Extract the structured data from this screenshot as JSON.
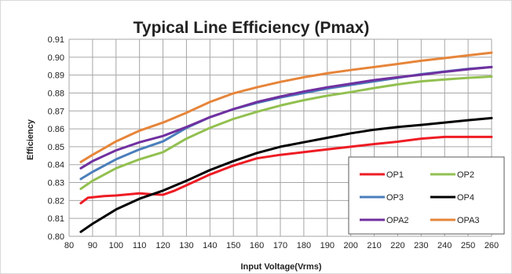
{
  "chart_data": {
    "type": "line",
    "title": "Typical Line Efficiency (Pmax)",
    "xlabel": "Input Voltage(Vrms)",
    "ylabel": "Efficiency",
    "xlim": [
      80,
      260
    ],
    "ylim": [
      0.8,
      0.91
    ],
    "x_ticks": [
      "80",
      "90",
      "100",
      "110",
      "120",
      "130",
      "140",
      "150",
      "160",
      "170",
      "180",
      "190",
      "200",
      "210",
      "220",
      "230",
      "240",
      "250",
      "260"
    ],
    "y_ticks": [
      "0.80",
      "0.81",
      "0.82",
      "0.83",
      "0.84",
      "0.85",
      "0.86",
      "0.87",
      "0.88",
      "0.89",
      "0.90",
      "0.91"
    ],
    "grid": true,
    "legend_position": "bottom-right",
    "series": [
      {
        "name": "OP1",
        "color": "#ee1c24",
        "x": [
          85,
          88,
          95,
          100,
          110,
          115,
          120,
          125,
          130,
          140,
          150,
          160,
          170,
          180,
          190,
          200,
          210,
          220,
          230,
          240,
          250,
          260
        ],
        "y": [
          0.8185,
          0.8215,
          0.8225,
          0.8228,
          0.824,
          0.8235,
          0.8232,
          0.8255,
          0.8285,
          0.8345,
          0.8395,
          0.8435,
          0.8455,
          0.847,
          0.8485,
          0.85,
          0.8515,
          0.8528,
          0.8545,
          0.8555,
          0.8555,
          0.8555
        ]
      },
      {
        "name": "OP2",
        "color": "#92c050",
        "x": [
          85,
          90,
          100,
          110,
          120,
          130,
          140,
          150,
          160,
          170,
          180,
          190,
          200,
          210,
          220,
          230,
          240,
          250,
          260
        ],
        "y": [
          0.8265,
          0.831,
          0.838,
          0.843,
          0.847,
          0.8545,
          0.8605,
          0.8655,
          0.8695,
          0.873,
          0.876,
          0.8785,
          0.8805,
          0.8828,
          0.8848,
          0.8865,
          0.8875,
          0.8885,
          0.8892
        ]
      },
      {
        "name": "OP3",
        "color": "#4a7ebb",
        "x": [
          85,
          90,
          100,
          110,
          120,
          130,
          140,
          150,
          160,
          170,
          180,
          190,
          200,
          210,
          220,
          230,
          240,
          250,
          260
        ],
        "y": [
          0.832,
          0.836,
          0.843,
          0.8485,
          0.853,
          0.8605,
          0.8665,
          0.871,
          0.8745,
          0.8775,
          0.88,
          0.8825,
          0.8845,
          0.8865,
          0.8885,
          0.8905,
          0.892,
          0.8935,
          0.8945
        ]
      },
      {
        "name": "OP4",
        "color": "#000000",
        "x": [
          85,
          90,
          100,
          110,
          120,
          130,
          140,
          150,
          160,
          170,
          180,
          190,
          200,
          210,
          220,
          230,
          240,
          250,
          260
        ],
        "y": [
          0.8025,
          0.807,
          0.815,
          0.821,
          0.8255,
          0.831,
          0.837,
          0.842,
          0.8465,
          0.85,
          0.8525,
          0.855,
          0.8575,
          0.8595,
          0.861,
          0.8622,
          0.8635,
          0.8648,
          0.866
        ]
      },
      {
        "name": "OPA2",
        "color": "#7030a0",
        "x": [
          85,
          90,
          100,
          110,
          120,
          130,
          140,
          150,
          160,
          170,
          180,
          190,
          200,
          210,
          220,
          230,
          240,
          250,
          260
        ],
        "y": [
          0.838,
          0.842,
          0.848,
          0.8525,
          0.856,
          0.861,
          0.8665,
          0.871,
          0.875,
          0.878,
          0.8808,
          0.8832,
          0.8852,
          0.8872,
          0.8888,
          0.8902,
          0.8918,
          0.8932,
          0.8945
        ]
      },
      {
        "name": "OPA3",
        "color": "#e6853a",
        "x": [
          85,
          90,
          100,
          110,
          120,
          130,
          140,
          150,
          160,
          170,
          180,
          190,
          200,
          210,
          220,
          230,
          240,
          250,
          260
        ],
        "y": [
          0.8415,
          0.8455,
          0.853,
          0.859,
          0.8635,
          0.869,
          0.875,
          0.8798,
          0.8832,
          0.8862,
          0.8888,
          0.891,
          0.8928,
          0.8945,
          0.8962,
          0.898,
          0.8995,
          0.901,
          0.9025
        ]
      }
    ]
  }
}
